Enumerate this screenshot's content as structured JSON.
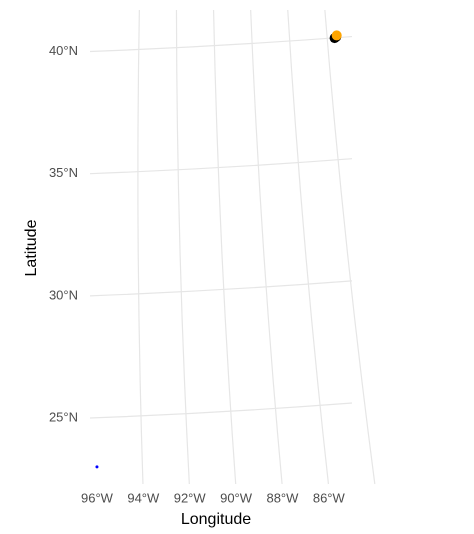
{
  "chart_data": {
    "type": "scatter",
    "xlabel": "Longitude",
    "ylabel": "Latitude",
    "xlim": [
      -96.3,
      -85.0
    ],
    "ylim": [
      22.3,
      41.7
    ],
    "xticks": [
      {
        "value": -96,
        "label": "96°W"
      },
      {
        "value": -94,
        "label": "94°W"
      },
      {
        "value": -92,
        "label": "92°W"
      },
      {
        "value": -90,
        "label": "90°W"
      },
      {
        "value": -88,
        "label": "88°W"
      },
      {
        "value": -86,
        "label": "86°W"
      }
    ],
    "yticks": [
      {
        "value": 25,
        "label": "25°N"
      },
      {
        "value": 30,
        "label": "30°N"
      },
      {
        "value": 35,
        "label": "35°N"
      },
      {
        "value": 40,
        "label": "40°N"
      }
    ],
    "grid": true,
    "series": [
      {
        "color": "#000000",
        "size": 5,
        "x": [
          -85.75,
          -85.68
        ],
        "values": [
          40.55,
          40.6
        ]
      },
      {
        "color": "#FFA500",
        "size": 5,
        "x": [
          -85.66
        ],
        "values": [
          40.66
        ]
      },
      {
        "color": "#0000FF",
        "size": 1.5,
        "x": [
          -96.0
        ],
        "values": [
          23.0
        ]
      }
    ]
  }
}
